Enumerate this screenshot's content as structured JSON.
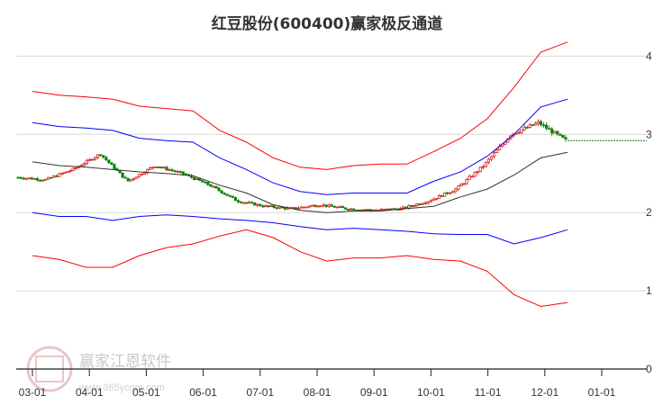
{
  "chart_data": {
    "type": "line",
    "title": "红豆股份(600400)赢家极反通道",
    "x_tick_labels": [
      "03-01",
      "04-01",
      "05-01",
      "06-01",
      "07-01",
      "08-01",
      "09-01",
      "10-01",
      "11-01",
      "12-01",
      "01-01"
    ],
    "y_tick_labels": [
      "4",
      "3",
      "2",
      "1",
      "0"
    ],
    "ylim": [
      0,
      4.2
    ],
    "grid": "horizontal",
    "colors": {
      "up": "#e00000",
      "down": "#008000",
      "outer_band": "#ff0000",
      "inner_band": "#0000ff",
      "middle_line": "#333333",
      "last_price_line": "#008000"
    },
    "x": [
      "03-01",
      "03-15",
      "04-01",
      "04-15",
      "05-01",
      "05-15",
      "06-01",
      "06-15",
      "07-01",
      "07-15",
      "08-01",
      "08-15",
      "09-01",
      "09-15",
      "10-01",
      "10-15",
      "11-01",
      "11-15",
      "12-01",
      "12-15",
      "12-20"
    ],
    "series": [
      {
        "role": "outer-upper",
        "values": [
          3.55,
          3.5,
          3.48,
          3.45,
          3.36,
          3.33,
          3.3,
          3.05,
          2.9,
          2.7,
          2.58,
          2.55,
          2.6,
          2.62,
          2.62,
          2.78,
          2.95,
          3.2,
          3.6,
          4.05,
          4.18
        ]
      },
      {
        "role": "inner-upper",
        "values": [
          3.15,
          3.1,
          3.08,
          3.05,
          2.95,
          2.92,
          2.9,
          2.7,
          2.55,
          2.38,
          2.27,
          2.23,
          2.25,
          2.25,
          2.25,
          2.4,
          2.52,
          2.72,
          3.0,
          3.35,
          3.45
        ]
      },
      {
        "role": "middle",
        "values": [
          2.65,
          2.6,
          2.58,
          2.55,
          2.52,
          2.5,
          2.47,
          2.35,
          2.25,
          2.1,
          2.03,
          2.0,
          2.02,
          2.02,
          2.05,
          2.08,
          2.2,
          2.3,
          2.48,
          2.7,
          2.77
        ]
      },
      {
        "role": "inner-lower",
        "values": [
          2.0,
          1.95,
          1.95,
          1.9,
          1.95,
          1.97,
          1.95,
          1.92,
          1.9,
          1.87,
          1.82,
          1.78,
          1.8,
          1.78,
          1.76,
          1.73,
          1.72,
          1.72,
          1.6,
          1.68,
          1.78
        ]
      },
      {
        "role": "outer-lower",
        "values": [
          1.45,
          1.4,
          1.3,
          1.3,
          1.45,
          1.55,
          1.6,
          1.7,
          1.78,
          1.68,
          1.5,
          1.38,
          1.42,
          1.42,
          1.45,
          1.4,
          1.38,
          1.25,
          0.95,
          0.8,
          0.85
        ]
      },
      {
        "role": "price",
        "values": [
          2.45,
          2.42,
          2.55,
          2.75,
          2.4,
          2.6,
          2.5,
          2.35,
          2.15,
          2.08,
          2.05,
          2.1,
          2.05,
          2.03,
          2.05,
          2.15,
          2.3,
          2.6,
          3.0,
          3.15,
          2.92
        ]
      }
    ],
    "last_price": 2.92,
    "watermark": {
      "text": "赢家江恩软件",
      "url": "www.365ycom.com"
    }
  }
}
